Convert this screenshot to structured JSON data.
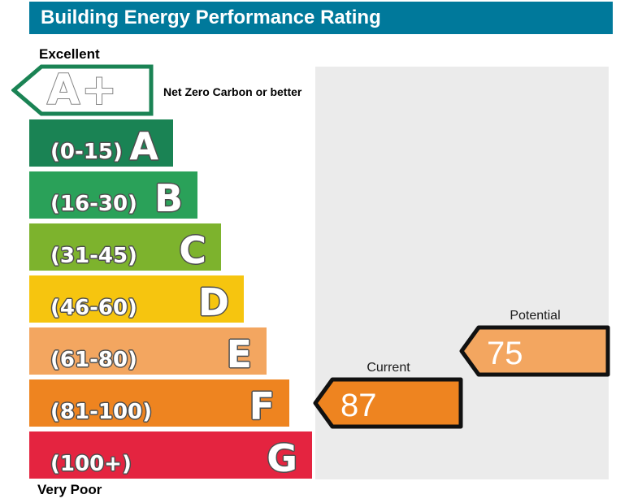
{
  "header": {
    "title": "Building Energy Performance Rating",
    "bg_color": "#00799b"
  },
  "labels": {
    "top": "Excellent",
    "bottom": "Very Poor"
  },
  "net_zero_band": {
    "letter": "A+",
    "note": "Net Zero Carbon or better",
    "border_color": "#1a8354",
    "letter_outline_color": "#858585"
  },
  "bands": [
    {
      "letter": "A",
      "range": "(0-15)",
      "color": "#1a8354"
    },
    {
      "letter": "B",
      "range": "(16-30)",
      "color": "#2aa159"
    },
    {
      "letter": "C",
      "range": "(31-45)",
      "color": "#7db32d"
    },
    {
      "letter": "D",
      "range": "(46-60)",
      "color": "#f6c50f"
    },
    {
      "letter": "E",
      "range": "(61-80)",
      "color": "#f3a660"
    },
    {
      "letter": "F",
      "range": "(81-100)",
      "color": "#ee8420"
    },
    {
      "letter": "G",
      "range": "(100+)",
      "color": "#e42440"
    }
  ],
  "markers": {
    "current": {
      "label": "Current",
      "value": "87",
      "color": "#ee8420",
      "band_letter": "F"
    },
    "potential": {
      "label": "Potential",
      "value": "75",
      "color": "#f3a660",
      "band_letter": "E"
    }
  },
  "panel_color": "#ebebeb",
  "chart_data": {
    "type": "bar",
    "title": "Building Energy Performance Rating",
    "categories": [
      "A+",
      "A",
      "B",
      "C",
      "D",
      "E",
      "F",
      "G"
    ],
    "band_ranges": [
      "Net Zero Carbon or better",
      "0-15",
      "16-30",
      "31-45",
      "46-60",
      "61-80",
      "81-100",
      "100+"
    ],
    "band_colors": [
      "#ffffff",
      "#1a8354",
      "#2aa159",
      "#7db32d",
      "#f6c50f",
      "#f3a660",
      "#ee8420",
      "#e42440"
    ],
    "scale_top_label": "Excellent",
    "scale_bottom_label": "Very Poor",
    "legend_position": "none",
    "grid": false,
    "markers": [
      {
        "name": "Current",
        "value": 87,
        "band": "F"
      },
      {
        "name": "Potential",
        "value": 75,
        "band": "E"
      }
    ]
  }
}
